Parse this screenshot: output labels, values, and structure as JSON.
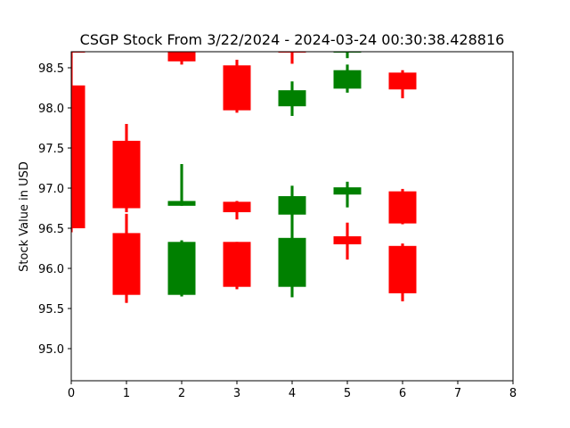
{
  "chart_data": {
    "type": "candlestick",
    "title": "CSGP Stock From 3/22/2024 - 2024-03-24 00:30:38.428816",
    "xlabel": "",
    "ylabel": "Stock Value in USD",
    "xlim": [
      0,
      8
    ],
    "ylim": [
      94.6,
      98.7
    ],
    "x_ticks": [
      "0",
      "1",
      "2",
      "3",
      "4",
      "5",
      "6",
      "7",
      "8"
    ],
    "y_ticks": [
      "95.0",
      "95.5",
      "96.0",
      "96.5",
      "97.0",
      "97.5",
      "98.0",
      "98.5"
    ],
    "grid": false,
    "colors": {
      "up": "#008000",
      "down": "#ff0000"
    },
    "candles": [
      {
        "x": 0,
        "open": 98.28,
        "close": 96.5,
        "high": 98.65,
        "low": 96.45,
        "dir": "down"
      },
      {
        "x": 0,
        "open": 98.7,
        "close": 98.7,
        "high": 98.7,
        "low": 98.62,
        "dir": "down"
      },
      {
        "x": 1,
        "open": 97.59,
        "close": 96.75,
        "high": 97.8,
        "low": 96.7,
        "dir": "down"
      },
      {
        "x": 1,
        "open": 96.44,
        "close": 95.67,
        "high": 96.68,
        "low": 95.57,
        "dir": "down"
      },
      {
        "x": 2,
        "open": 96.78,
        "close": 96.84,
        "high": 97.3,
        "low": 96.78,
        "dir": "up"
      },
      {
        "x": 2,
        "open": 95.67,
        "close": 96.33,
        "high": 96.35,
        "low": 95.65,
        "dir": "up"
      },
      {
        "x": 2,
        "open": 98.7,
        "close": 98.58,
        "high": 98.7,
        "low": 98.54,
        "dir": "down"
      },
      {
        "x": 3,
        "open": 98.53,
        "close": 97.97,
        "high": 98.6,
        "low": 97.94,
        "dir": "down"
      },
      {
        "x": 3,
        "open": 96.83,
        "close": 96.7,
        "high": 96.84,
        "low": 96.61,
        "dir": "down"
      },
      {
        "x": 3,
        "open": 96.33,
        "close": 95.77,
        "high": 96.33,
        "low": 95.74,
        "dir": "down"
      },
      {
        "x": 4,
        "open": 98.02,
        "close": 98.22,
        "high": 98.33,
        "low": 97.9,
        "dir": "up"
      },
      {
        "x": 4,
        "open": 96.67,
        "close": 96.9,
        "high": 97.03,
        "low": 96.66,
        "dir": "up"
      },
      {
        "x": 4,
        "open": 95.77,
        "close": 96.38,
        "high": 96.67,
        "low": 95.64,
        "dir": "up"
      },
      {
        "x": 4,
        "open": 98.7,
        "close": 98.7,
        "high": 98.7,
        "low": 98.55,
        "dir": "down"
      },
      {
        "x": 5,
        "open": 98.24,
        "close": 98.47,
        "high": 98.54,
        "low": 98.19,
        "dir": "up"
      },
      {
        "x": 5,
        "open": 96.92,
        "close": 97.01,
        "high": 97.08,
        "low": 96.76,
        "dir": "up"
      },
      {
        "x": 5,
        "open": 96.4,
        "close": 96.3,
        "high": 96.57,
        "low": 96.11,
        "dir": "down"
      },
      {
        "x": 5,
        "open": 98.7,
        "close": 98.7,
        "high": 98.7,
        "low": 98.62,
        "dir": "up"
      },
      {
        "x": 6,
        "open": 98.44,
        "close": 98.23,
        "high": 98.47,
        "low": 98.12,
        "dir": "down"
      },
      {
        "x": 6,
        "open": 96.96,
        "close": 96.56,
        "high": 96.99,
        "low": 96.55,
        "dir": "down"
      },
      {
        "x": 6,
        "open": 96.28,
        "close": 95.69,
        "high": 96.31,
        "low": 95.59,
        "dir": "down"
      }
    ]
  }
}
